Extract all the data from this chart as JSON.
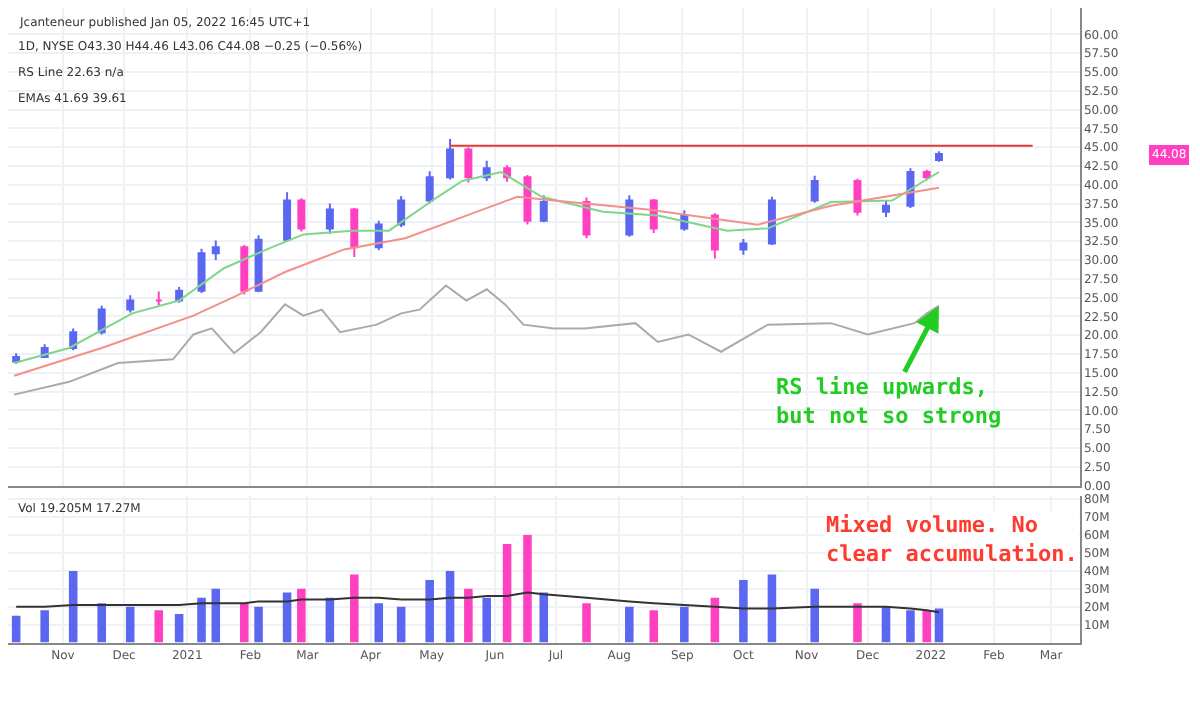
{
  "chart_data": [
    {
      "type": "candlestick",
      "tick_labels": "y",
      "grid": true,
      "xlim": [
        "2020-10-05",
        "2022-03-15"
      ],
      "xticks": [
        {
          "value": "2020-11-01",
          "label": null
        },
        {
          "value": "2020-12-01",
          "label": null
        },
        {
          "value": "2021-01-01",
          "label": null
        },
        {
          "value": "2021-02-01",
          "label": null
        },
        {
          "value": "2021-03-01",
          "label": null
        },
        {
          "value": "2021-04-01",
          "label": null
        },
        {
          "value": "2021-05-01",
          "label": null
        },
        {
          "value": "2021-06-01",
          "label": null
        },
        {
          "value": "2021-07-01",
          "label": null
        },
        {
          "value": "2021-08-01",
          "label": null
        },
        {
          "value": "2021-09-01",
          "label": null
        },
        {
          "value": "2021-10-01",
          "label": null
        },
        {
          "value": "2021-11-01",
          "label": null
        },
        {
          "value": "2021-12-01",
          "label": null
        },
        {
          "value": "2022-01-01",
          "label": null
        },
        {
          "value": "2022-02-01",
          "label": null
        },
        {
          "value": "2022-03-01",
          "label": null
        }
      ],
      "ylim": [
        0,
        63.5
      ],
      "yticks": [
        {
          "value": 0,
          "label": "0.00"
        },
        {
          "value": 2.5,
          "label": "2.50"
        },
        {
          "value": 5,
          "label": "5.00"
        },
        {
          "value": 7.5,
          "label": "7.50"
        },
        {
          "value": 10,
          "label": "10.00"
        },
        {
          "value": 12.5,
          "label": "12.50"
        },
        {
          "value": 15,
          "label": "15.00"
        },
        {
          "value": 17.5,
          "label": "17.50"
        },
        {
          "value": 20,
          "label": "20.00"
        },
        {
          "value": 22.5,
          "label": "22.50"
        },
        {
          "value": 25,
          "label": "25.00"
        },
        {
          "value": 27.5,
          "label": "27.50"
        },
        {
          "value": 30,
          "label": "30.00"
        },
        {
          "value": 32.5,
          "label": "32.50"
        },
        {
          "value": 35,
          "label": "35.00"
        },
        {
          "value": 37.5,
          "label": "37.50"
        },
        {
          "value": 40,
          "label": "40.00"
        },
        {
          "value": 42.5,
          "label": "42.50"
        },
        {
          "value": 45,
          "label": "45.00"
        },
        {
          "value": 47.5,
          "label": "47.50"
        },
        {
          "value": 50,
          "label": "50.00"
        },
        {
          "value": 52.5,
          "label": "52.50"
        },
        {
          "value": 55,
          "label": "55.00"
        },
        {
          "value": 57.5,
          "label": "57.50"
        },
        {
          "value": 60,
          "label": "60.00"
        }
      ],
      "x": [
        "2020-10-09",
        "2020-10-23",
        "2020-11-06",
        "2020-11-20",
        "2020-12-04",
        "2020-12-18",
        "2020-12-28",
        "2021-01-08",
        "2021-01-15",
        "2021-01-29",
        "2021-02-05",
        "2021-02-19",
        "2021-02-26",
        "2021-03-12",
        "2021-03-24",
        "2021-04-05",
        "2021-04-16",
        "2021-04-30",
        "2021-05-10",
        "2021-05-19",
        "2021-05-28",
        "2021-06-07",
        "2021-06-17",
        "2021-06-25",
        "2021-07-16",
        "2021-08-06",
        "2021-08-18",
        "2021-09-02",
        "2021-09-17",
        "2021-10-01",
        "2021-10-15",
        "2021-11-05",
        "2021-11-26",
        "2021-12-10",
        "2021-12-22",
        "2021-12-30",
        "2022-01-05"
      ],
      "ohlc": [
        [
          16.5,
          17.6,
          16.2,
          17.1
        ],
        [
          17.1,
          18.8,
          17.0,
          18.3
        ],
        [
          18.3,
          20.9,
          18.0,
          20.4
        ],
        [
          20.4,
          23.9,
          20.1,
          23.4
        ],
        [
          23.4,
          25.3,
          23.0,
          24.6
        ],
        [
          24.6,
          25.8,
          24.0,
          24.6
        ],
        [
          24.6,
          26.4,
          24.3,
          25.9
        ],
        [
          25.9,
          31.5,
          25.6,
          30.9
        ],
        [
          30.9,
          32.6,
          30.0,
          31.7
        ],
        [
          31.7,
          32.0,
          25.4,
          25.9
        ],
        [
          25.9,
          33.3,
          25.7,
          32.7
        ],
        [
          32.7,
          39.0,
          32.4,
          37.9
        ],
        [
          37.9,
          38.2,
          33.8,
          34.2
        ],
        [
          34.2,
          37.5,
          33.5,
          36.7
        ],
        [
          36.7,
          36.9,
          30.4,
          31.7
        ],
        [
          31.7,
          35.2,
          31.3,
          34.7
        ],
        [
          34.7,
          38.5,
          34.4,
          37.9
        ],
        [
          37.9,
          41.8,
          37.5,
          41.0
        ],
        [
          41.0,
          46.1,
          40.7,
          44.7
        ],
        [
          44.7,
          45.0,
          40.3,
          41.0
        ],
        [
          41.0,
          43.2,
          40.5,
          42.2
        ],
        [
          42.2,
          42.6,
          40.4,
          41.0
        ],
        [
          41.0,
          41.3,
          34.7,
          35.2
        ],
        [
          35.2,
          38.6,
          35.0,
          37.7
        ],
        [
          37.7,
          38.3,
          32.9,
          33.4
        ],
        [
          33.4,
          38.6,
          33.1,
          37.9
        ],
        [
          37.9,
          38.1,
          33.6,
          34.2
        ],
        [
          34.2,
          36.6,
          33.9,
          35.9
        ],
        [
          35.9,
          36.2,
          30.2,
          31.4
        ],
        [
          31.4,
          32.8,
          30.7,
          32.2
        ],
        [
          32.2,
          38.4,
          32.0,
          37.9
        ],
        [
          37.9,
          41.2,
          37.6,
          40.5
        ],
        [
          40.5,
          40.8,
          35.9,
          36.4
        ],
        [
          36.4,
          37.9,
          35.7,
          37.2
        ],
        [
          37.2,
          42.2,
          36.9,
          41.7
        ],
        [
          41.7,
          42.0,
          40.6,
          41.0
        ],
        [
          43.3,
          44.46,
          43.06,
          44.08
        ]
      ],
      "colors": [
        "#5b67f0",
        "#5b67f0",
        "#5b67f0",
        "#5b67f0",
        "#5b67f0",
        "#ff40c0",
        "#5b67f0",
        "#5b67f0",
        "#5b67f0",
        "#ff40c0",
        "#5b67f0",
        "#5b67f0",
        "#ff40c0",
        "#5b67f0",
        "#ff40c0",
        "#5b67f0",
        "#5b67f0",
        "#5b67f0",
        "#5b67f0",
        "#ff40c0",
        "#5b67f0",
        "#ff40c0",
        "#ff40c0",
        "#5b67f0",
        "#ff40c0",
        "#5b67f0",
        "#ff40c0",
        "#5b67f0",
        "#ff40c0",
        "#5b67f0",
        "#5b67f0",
        "#5b67f0",
        "#ff40c0",
        "#5b67f0",
        "#5b67f0",
        "#ff40c0",
        "#5b67f0"
      ],
      "series": [
        {
          "type": "line",
          "color": "#7fd68a",
          "x": [
            "2020-10-08",
            "2020-11-04",
            "2020-12-05",
            "2020-12-28",
            "2021-01-19",
            "2021-02-09",
            "2021-02-27",
            "2021-03-23",
            "2021-04-10",
            "2021-05-04",
            "2021-05-16",
            "2021-06-04",
            "2021-06-24",
            "2021-07-24",
            "2021-08-20",
            "2021-09-23",
            "2021-10-13",
            "2021-11-13",
            "2021-12-13",
            "2022-01-05"
          ],
          "values": [
            16.3,
            18.3,
            22.9,
            24.6,
            28.9,
            31.4,
            33.4,
            33.9,
            33.9,
            38.4,
            40.5,
            41.7,
            38.4,
            36.4,
            35.9,
            33.9,
            34.2,
            37.7,
            37.9,
            41.7
          ]
        },
        {
          "type": "line",
          "color": "#f4908a",
          "x": [
            "2020-10-08",
            "2020-11-20",
            "2021-01-04",
            "2021-01-24",
            "2021-02-18",
            "2021-03-19",
            "2021-04-18",
            "2021-05-18",
            "2021-06-12",
            "2021-06-30",
            "2021-08-15",
            "2021-10-08",
            "2021-11-13",
            "2022-01-05"
          ],
          "values": [
            14.6,
            18.3,
            22.6,
            25.1,
            28.4,
            31.4,
            32.9,
            35.9,
            38.4,
            37.9,
            36.7,
            34.7,
            37.2,
            39.6
          ]
        },
        {
          "type": "line",
          "color": "#aaaaaa",
          "x": [
            "2020-10-08",
            "2020-11-04",
            "2020-11-28",
            "2020-12-25",
            "2021-01-04",
            "2021-01-13",
            "2021-01-24",
            "2021-02-06",
            "2021-02-18",
            "2021-02-27",
            "2021-03-08",
            "2021-03-17",
            "2021-04-04",
            "2021-04-16",
            "2021-04-25",
            "2021-05-08",
            "2021-05-18",
            "2021-05-28",
            "2021-06-06",
            "2021-06-15",
            "2021-06-30",
            "2021-07-15",
            "2021-08-09",
            "2021-08-20",
            "2021-09-04",
            "2021-09-20",
            "2021-10-13",
            "2021-11-13",
            "2021-12-01",
            "2021-12-24",
            "2021-12-30",
            "2022-01-05"
          ],
          "values": [
            12.1,
            13.8,
            16.3,
            16.8,
            20.1,
            20.9,
            17.6,
            20.4,
            24.1,
            22.6,
            23.4,
            20.4,
            21.4,
            22.9,
            23.4,
            26.6,
            24.6,
            26.1,
            24.1,
            21.4,
            20.9,
            20.9,
            21.6,
            19.1,
            20.1,
            17.8,
            21.4,
            21.6,
            20.1,
            21.6,
            22.9,
            23.9
          ]
        },
        {
          "type": "line",
          "color": "#e53935",
          "x": [
            "2021-05-10",
            "2022-02-20"
          ],
          "values": [
            45.2,
            45.2
          ]
        }
      ],
      "annotations": [
        "Jcanteneur published Jan 05, 2022 16:45 UTC+1",
        "1D, NYSE O43.30 H44.46 L43.06 C44.08 −0.25 (−0.56%)",
        "RS Line 22.63 n/a",
        "EMAs 41.69 39.61",
        "44.08",
        {
          "text": "RS line upwards,\nbut not so strong",
          "x": "2022-01-05",
          "y": 23.9
        }
      ]
    },
    {
      "type": "bar",
      "grid": true,
      "xlim": [
        "2020-10-05",
        "2022-03-15"
      ],
      "xticks": [
        {
          "value": "2020-11-01",
          "label": "Nov"
        },
        {
          "value": "2020-12-01",
          "label": "Dec"
        },
        {
          "value": "2021-01-01",
          "label": "2021"
        },
        {
          "value": "2021-02-01",
          "label": "Feb"
        },
        {
          "value": "2021-03-01",
          "label": "Mar"
        },
        {
          "value": "2021-04-01",
          "label": "Apr"
        },
        {
          "value": "2021-05-01",
          "label": "May"
        },
        {
          "value": "2021-06-01",
          "label": "Jun"
        },
        {
          "value": "2021-07-01",
          "label": "Jul"
        },
        {
          "value": "2021-08-01",
          "label": "Aug"
        },
        {
          "value": "2021-09-01",
          "label": "Sep"
        },
        {
          "value": "2021-10-01",
          "label": "Oct"
        },
        {
          "value": "2021-11-01",
          "label": "Nov"
        },
        {
          "value": "2021-12-01",
          "label": "Dec"
        },
        {
          "value": "2022-01-01",
          "label": "2022"
        },
        {
          "value": "2022-02-01",
          "label": "Feb"
        },
        {
          "value": "2022-03-01",
          "label": "Mar"
        }
      ],
      "ylim": [
        0,
        82
      ],
      "yticks": [
        {
          "value": 10,
          "label": "10M"
        },
        {
          "value": 20,
          "label": "20M"
        },
        {
          "value": 30,
          "label": "30M"
        },
        {
          "value": 40,
          "label": "40M"
        },
        {
          "value": 50,
          "label": "50M"
        },
        {
          "value": 60,
          "label": "60M"
        },
        {
          "value": 70,
          "label": "70M"
        },
        {
          "value": 80,
          "label": "80M"
        }
      ],
      "x": [
        "2020-10-09",
        "2020-10-23",
        "2020-11-06",
        "2020-11-20",
        "2020-12-04",
        "2020-12-18",
        "2020-12-28",
        "2021-01-08",
        "2021-01-15",
        "2021-01-29",
        "2021-02-05",
        "2021-02-19",
        "2021-02-26",
        "2021-03-12",
        "2021-03-24",
        "2021-04-05",
        "2021-04-16",
        "2021-04-30",
        "2021-05-10",
        "2021-05-19",
        "2021-05-28",
        "2021-06-07",
        "2021-06-17",
        "2021-06-25",
        "2021-07-16",
        "2021-08-06",
        "2021-08-18",
        "2021-09-02",
        "2021-09-17",
        "2021-10-01",
        "2021-10-15",
        "2021-11-05",
        "2021-11-26",
        "2021-12-10",
        "2021-12-22",
        "2021-12-30",
        "2022-01-05"
      ],
      "series": [
        {
          "type": "bar",
          "colors": [
            "#5b67f0",
            "#5b67f0",
            "#5b67f0",
            "#5b67f0",
            "#5b67f0",
            "#ff40c0",
            "#5b67f0",
            "#5b67f0",
            "#5b67f0",
            "#ff40c0",
            "#5b67f0",
            "#5b67f0",
            "#ff40c0",
            "#5b67f0",
            "#ff40c0",
            "#5b67f0",
            "#5b67f0",
            "#5b67f0",
            "#5b67f0",
            "#ff40c0",
            "#5b67f0",
            "#ff40c0",
            "#ff40c0",
            "#5b67f0",
            "#ff40c0",
            "#5b67f0",
            "#ff40c0",
            "#5b67f0",
            "#ff40c0",
            "#5b67f0",
            "#5b67f0",
            "#5b67f0",
            "#ff40c0",
            "#5b67f0",
            "#5b67f0",
            "#ff40c0",
            "#5b67f0"
          ],
          "values": [
            15,
            18,
            40,
            22,
            20,
            18,
            16,
            25,
            30,
            22,
            20,
            28,
            30,
            25,
            38,
            22,
            20,
            35,
            40,
            30,
            25,
            55,
            60,
            28,
            22,
            20,
            18,
            20,
            25,
            35,
            38,
            30,
            22,
            20,
            18,
            18,
            19
          ]
        },
        {
          "type": "line",
          "color": "#333333",
          "values": [
            20,
            20,
            21,
            21,
            21,
            21,
            21,
            22,
            22,
            22,
            23,
            23,
            24,
            24,
            25,
            25,
            24,
            24,
            25,
            25,
            26,
            26,
            28,
            27,
            25,
            23,
            22,
            21,
            20,
            19,
            19,
            20,
            20,
            20,
            19,
            18,
            17
          ]
        }
      ],
      "annotations": [
        "Vol 19.205M 17.27M",
        "Mixed volume. No\nclear accumulation."
      ]
    }
  ]
}
